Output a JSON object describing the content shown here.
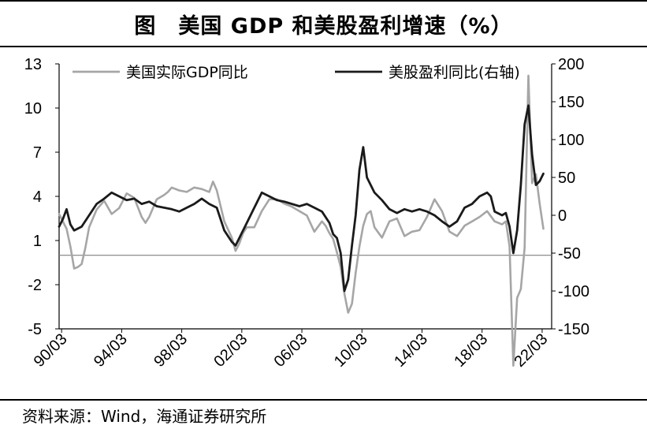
{
  "header": {
    "title": "图　美国 GDP 和美股盈利增速（%）"
  },
  "footer": {
    "source": "资料来源：Wind，海通证券研究所"
  },
  "colors": {
    "gdp": "#a6a6a6",
    "earnings": "#1a1a1a",
    "zero_line": "#7f7f7f",
    "axis": "#000000"
  },
  "chart_data": {
    "type": "line",
    "title": "美国 GDP 和美股盈利增速（%）",
    "x_tick_labels": [
      "90/03",
      "94/03",
      "98/03",
      "02/03",
      "06/03",
      "10/03",
      "14/03",
      "18/03",
      "22/03"
    ],
    "x_range": [
      1990.0,
      2022.8
    ],
    "left_axis": {
      "label": "美国实际GDP同比",
      "ticks": [
        "13",
        "10",
        "7",
        "4",
        "1",
        "-2",
        "-5"
      ],
      "range": [
        -5,
        13
      ]
    },
    "right_axis": {
      "label": "美股盈利同比(右轴)",
      "ticks": [
        "200",
        "150",
        "100",
        "50",
        "0",
        "-50",
        "-100",
        "-150"
      ],
      "range": [
        -150,
        200
      ]
    },
    "series": [
      {
        "name": "美国实际GDP同比",
        "axis": "left",
        "points": [
          [
            1990.0,
            2.8
          ],
          [
            1990.5,
            1.8
          ],
          [
            1990.75,
            0.6
          ],
          [
            1991.0,
            -0.9
          ],
          [
            1991.25,
            -0.8
          ],
          [
            1991.5,
            -0.6
          ],
          [
            1991.75,
            0.5
          ],
          [
            1992.0,
            1.9
          ],
          [
            1992.5,
            3.1
          ],
          [
            1993.0,
            3.7
          ],
          [
            1993.5,
            2.8
          ],
          [
            1994.0,
            3.2
          ],
          [
            1994.5,
            4.2
          ],
          [
            1995.0,
            3.9
          ],
          [
            1995.5,
            2.6
          ],
          [
            1995.75,
            2.2
          ],
          [
            1996.0,
            2.6
          ],
          [
            1996.5,
            3.8
          ],
          [
            1997.0,
            4.1
          ],
          [
            1997.25,
            4.3
          ],
          [
            1997.5,
            4.6
          ],
          [
            1998.0,
            4.4
          ],
          [
            1998.5,
            4.3
          ],
          [
            1999.0,
            4.6
          ],
          [
            1999.5,
            4.5
          ],
          [
            2000.0,
            4.3
          ],
          [
            2000.25,
            5.0
          ],
          [
            2000.5,
            4.4
          ],
          [
            2001.0,
            2.3
          ],
          [
            2001.5,
            1.2
          ],
          [
            2001.75,
            0.3
          ],
          [
            2002.0,
            0.8
          ],
          [
            2002.25,
            1.5
          ],
          [
            2002.5,
            1.9
          ],
          [
            2003.0,
            1.9
          ],
          [
            2003.5,
            3.0
          ],
          [
            2004.0,
            3.8
          ],
          [
            2004.5,
            3.8
          ],
          [
            2005.0,
            3.5
          ],
          [
            2005.5,
            3.3
          ],
          [
            2006.0,
            3.0
          ],
          [
            2006.5,
            2.7
          ],
          [
            2007.0,
            1.6
          ],
          [
            2007.5,
            2.3
          ],
          [
            2007.75,
            2.0
          ],
          [
            2008.0,
            1.5
          ],
          [
            2008.25,
            1.1
          ],
          [
            2008.5,
            0.2
          ],
          [
            2008.75,
            -0.8
          ],
          [
            2009.0,
            -2.6
          ],
          [
            2009.25,
            -3.9
          ],
          [
            2009.5,
            -3.3
          ],
          [
            2009.75,
            -1.2
          ],
          [
            2010.0,
            0.6
          ],
          [
            2010.25,
            2.0
          ],
          [
            2010.5,
            2.8
          ],
          [
            2010.75,
            3.0
          ],
          [
            2011.0,
            1.9
          ],
          [
            2011.5,
            1.2
          ],
          [
            2012.0,
            2.3
          ],
          [
            2012.5,
            2.5
          ],
          [
            2013.0,
            1.3
          ],
          [
            2013.5,
            1.6
          ],
          [
            2014.0,
            1.7
          ],
          [
            2014.5,
            2.6
          ],
          [
            2015.0,
            3.8
          ],
          [
            2015.5,
            3.0
          ],
          [
            2016.0,
            1.6
          ],
          [
            2016.5,
            1.3
          ],
          [
            2017.0,
            2.0
          ],
          [
            2017.5,
            2.3
          ],
          [
            2018.0,
            2.6
          ],
          [
            2018.5,
            3.0
          ],
          [
            2019.0,
            2.3
          ],
          [
            2019.5,
            2.1
          ],
          [
            2019.75,
            2.3
          ],
          [
            2020.0,
            0.6
          ],
          [
            2020.25,
            -7.5
          ],
          [
            2020.5,
            -2.9
          ],
          [
            2020.75,
            -2.3
          ],
          [
            2021.0,
            0.5
          ],
          [
            2021.25,
            12.2
          ],
          [
            2021.5,
            4.9
          ],
          [
            2021.75,
            5.5
          ],
          [
            2022.0,
            3.5
          ],
          [
            2022.25,
            1.8
          ]
        ]
      },
      {
        "name": "美股盈利同比(右轴)",
        "axis": "right",
        "points": [
          [
            1990.0,
            -15
          ],
          [
            1990.25,
            -5
          ],
          [
            1990.5,
            8
          ],
          [
            1990.75,
            -12
          ],
          [
            1991.0,
            -20
          ],
          [
            1991.5,
            -15
          ],
          [
            1992.0,
            0
          ],
          [
            1992.5,
            15
          ],
          [
            1993.0,
            22
          ],
          [
            1993.5,
            30
          ],
          [
            1994.0,
            25
          ],
          [
            1994.5,
            20
          ],
          [
            1995.0,
            22
          ],
          [
            1995.5,
            15
          ],
          [
            1996.0,
            18
          ],
          [
            1996.5,
            12
          ],
          [
            1997.0,
            10
          ],
          [
            1997.5,
            8
          ],
          [
            1998.0,
            5
          ],
          [
            1998.5,
            10
          ],
          [
            1999.0,
            15
          ],
          [
            1999.5,
            22
          ],
          [
            2000.0,
            15
          ],
          [
            2000.5,
            10
          ],
          [
            2001.0,
            -20
          ],
          [
            2001.5,
            -35
          ],
          [
            2001.75,
            -40
          ],
          [
            2002.0,
            -30
          ],
          [
            2002.5,
            -10
          ],
          [
            2003.0,
            10
          ],
          [
            2003.5,
            30
          ],
          [
            2004.0,
            25
          ],
          [
            2004.5,
            20
          ],
          [
            2005.0,
            18
          ],
          [
            2005.5,
            15
          ],
          [
            2006.0,
            12
          ],
          [
            2006.5,
            15
          ],
          [
            2007.0,
            10
          ],
          [
            2007.5,
            5
          ],
          [
            2008.0,
            -10
          ],
          [
            2008.25,
            -25
          ],
          [
            2008.5,
            -30
          ],
          [
            2008.75,
            -50
          ],
          [
            2009.0,
            -100
          ],
          [
            2009.25,
            -85
          ],
          [
            2009.5,
            -40
          ],
          [
            2009.75,
            0
          ],
          [
            2010.0,
            60
          ],
          [
            2010.25,
            90
          ],
          [
            2010.5,
            50
          ],
          [
            2011.0,
            30
          ],
          [
            2011.5,
            20
          ],
          [
            2012.0,
            8
          ],
          [
            2012.5,
            3
          ],
          [
            2013.0,
            8
          ],
          [
            2013.5,
            5
          ],
          [
            2014.0,
            8
          ],
          [
            2014.5,
            5
          ],
          [
            2015.0,
            0
          ],
          [
            2015.5,
            -8
          ],
          [
            2016.0,
            -15
          ],
          [
            2016.5,
            -8
          ],
          [
            2017.0,
            10
          ],
          [
            2017.5,
            15
          ],
          [
            2018.0,
            25
          ],
          [
            2018.5,
            30
          ],
          [
            2018.75,
            25
          ],
          [
            2019.0,
            5
          ],
          [
            2019.5,
            0
          ],
          [
            2019.75,
            3
          ],
          [
            2020.0,
            -15
          ],
          [
            2020.25,
            -50
          ],
          [
            2020.5,
            -20
          ],
          [
            2020.75,
            40
          ],
          [
            2021.0,
            120
          ],
          [
            2021.25,
            145
          ],
          [
            2021.5,
            80
          ],
          [
            2021.75,
            40
          ],
          [
            2022.0,
            45
          ],
          [
            2022.25,
            55
          ]
        ]
      }
    ]
  }
}
